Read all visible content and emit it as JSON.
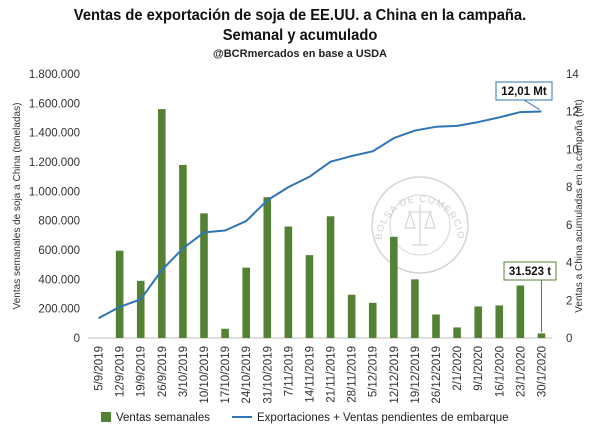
{
  "header": {
    "title_line1": "Ventas de exportación de soja de EE.UU. a China en la campaña.",
    "title_line2": "Semanal y acumulado",
    "subtitle": "@BCRmercados en base a USDA"
  },
  "watermark": {
    "text": "BOLSA DE COMERCIO DE ROSARIO"
  },
  "chart_data": {
    "type": "bar",
    "categories": [
      "5/9/2019",
      "12/9/2019",
      "19/9/2019",
      "26/9/2019",
      "3/10/2019",
      "10/10/2019",
      "17/10/2019",
      "24/10/2019",
      "31/10/2019",
      "7/11/2019",
      "14/11/2019",
      "21/11/2019",
      "28/11/2019",
      "5/12/2019",
      "12/12/2019",
      "19/12/2019",
      "26/12/2019",
      "2/1/2020",
      "9/1/2020",
      "16/1/2020",
      "23/1/2020",
      "30/1/2020"
    ],
    "series": [
      {
        "name": "Ventas semanales",
        "type": "bar",
        "axis": "left",
        "color": "#548235",
        "values": [
          0,
          595000,
          390000,
          1560000,
          1180000,
          850000,
          63000,
          480000,
          960000,
          760000,
          565000,
          830000,
          295000,
          240000,
          690000,
          400000,
          160000,
          72000,
          215000,
          222000,
          358000,
          31523
        ]
      },
      {
        "name": "Exportaciones + Ventas pendientes de embarque",
        "type": "line",
        "axis": "right",
        "color": "#2e75b6",
        "values": [
          1.05,
          1.65,
          2.05,
          3.6,
          4.75,
          5.6,
          5.7,
          6.2,
          7.3,
          8.0,
          8.55,
          9.35,
          9.65,
          9.9,
          10.6,
          11.0,
          11.2,
          11.25,
          11.45,
          11.7,
          11.98,
          12.01
        ]
      }
    ],
    "y_left": {
      "label": "Ventas semanales de soja a China (toneladas)",
      "ylim": [
        0,
        1800000
      ],
      "ticks": [
        "0",
        "200.000",
        "400.000",
        "600.000",
        "800.000",
        "1.000.000",
        "1.200.000",
        "1.400.000",
        "1.600.000",
        "1.800.000"
      ]
    },
    "y_right": {
      "label": "Ventas a China acumuladas en la campaña (Mt)",
      "ylim": [
        0,
        14
      ],
      "ticks": [
        "0",
        "2",
        "4",
        "6",
        "8",
        "10",
        "12",
        "14"
      ]
    },
    "legend": {
      "position": "bottom",
      "items": [
        "Ventas semanales",
        "Exportaciones + Ventas pendientes de embarque"
      ]
    },
    "annotations": [
      {
        "text": "12,01 Mt",
        "target_series": "Exportaciones + Ventas pendientes de embarque",
        "target_category": "30/1/2020"
      },
      {
        "text": "31.523 t",
        "target_series": "Ventas semanales",
        "target_category": "30/1/2020"
      }
    ],
    "grid": false
  }
}
